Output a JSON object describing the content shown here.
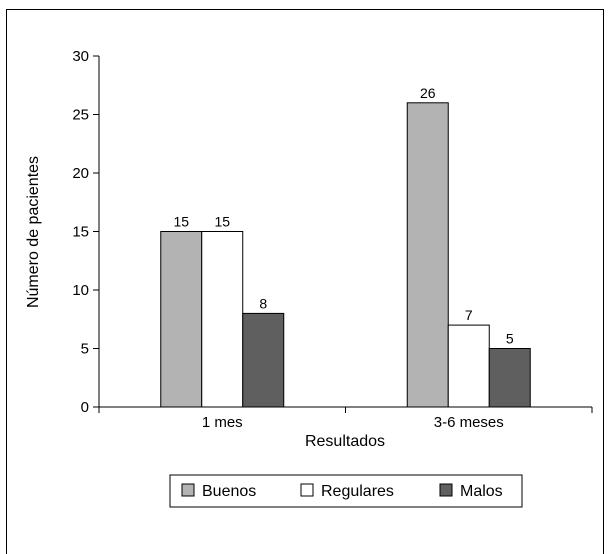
{
  "chart_data": {
    "type": "bar",
    "title": "",
    "xlabel": "Resultados",
    "ylabel": "Número de pacientes",
    "categories": [
      "1 mes",
      "3-6 meses"
    ],
    "series": [
      {
        "name": "Buenos",
        "values": [
          15,
          26
        ],
        "color": "#b3b3b3"
      },
      {
        "name": "Regulares",
        "values": [
          15,
          7
        ],
        "color": "#ffffff"
      },
      {
        "name": "Malos",
        "values": [
          8,
          5
        ],
        "color": "#5f5f5f"
      }
    ],
    "ylim": [
      0,
      30
    ],
    "yticks": [
      0,
      5,
      10,
      15,
      20,
      25,
      30
    ],
    "grid": false,
    "legend_position": "bottom",
    "data_labels": true
  }
}
